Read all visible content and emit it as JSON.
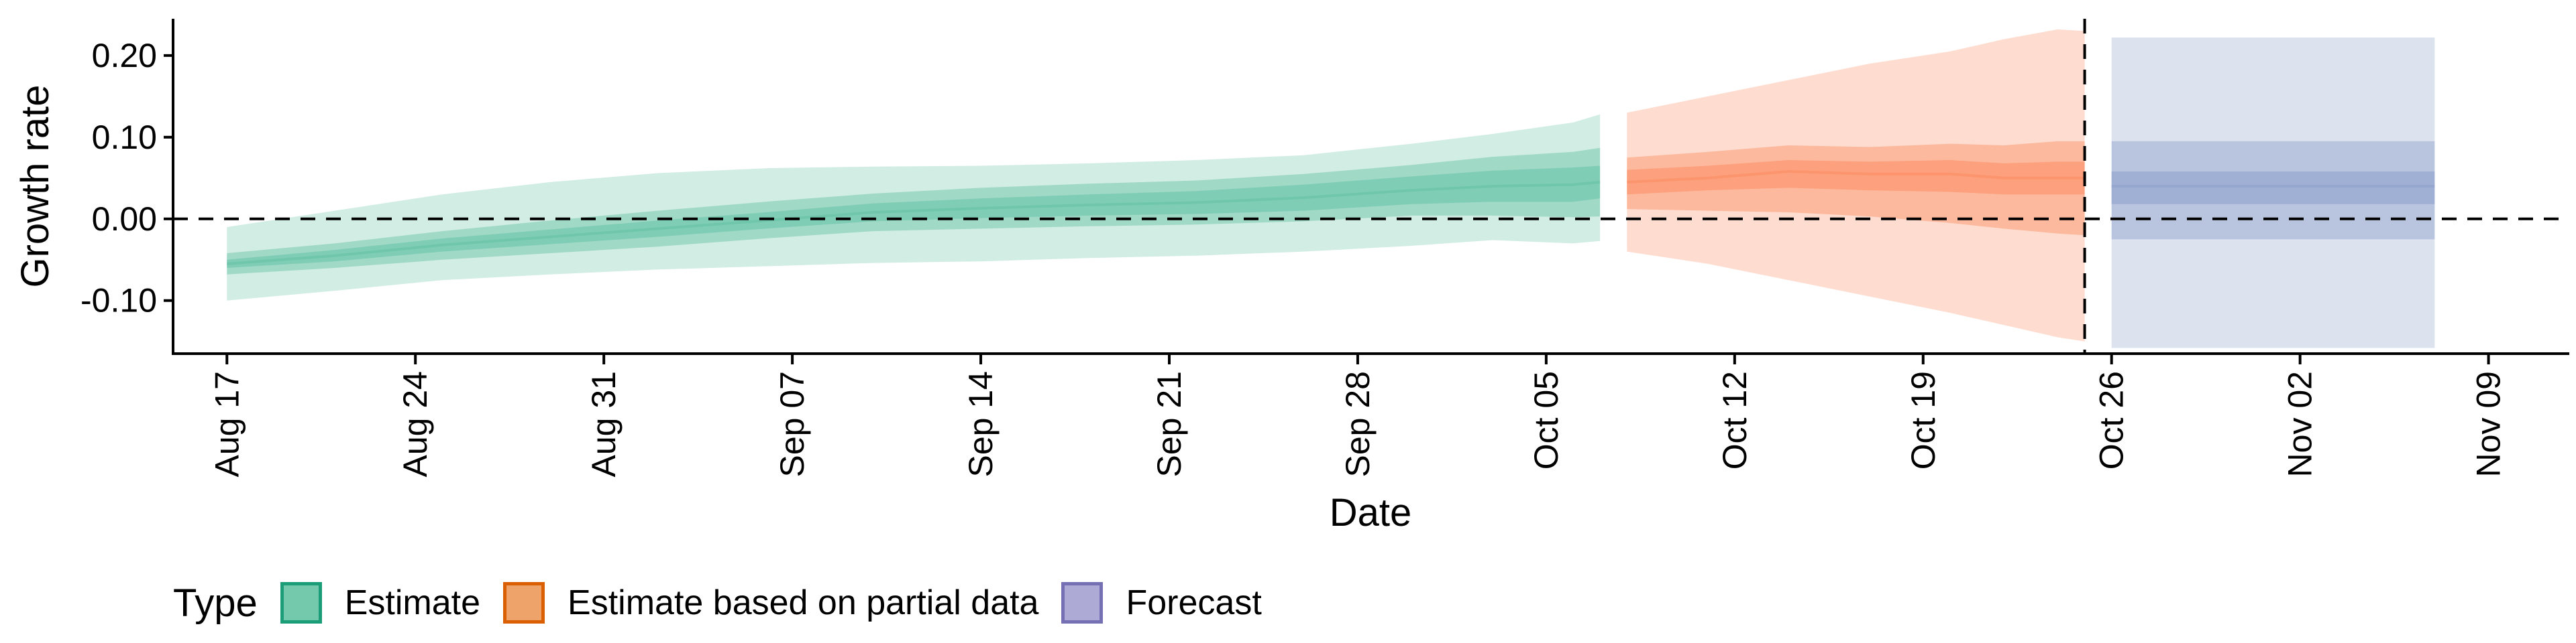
{
  "chart_data": {
    "type": "area",
    "xlabel": "Date",
    "ylabel": "Growth rate",
    "x_start": "2020-08-15",
    "x_end": "2020-11-12",
    "ylim": [
      -0.165,
      0.245
    ],
    "y_ticks": [
      -0.1,
      0.0,
      0.1,
      0.2
    ],
    "y_tick_labels": [
      "-0.10",
      "0.00",
      "0.10",
      "0.20"
    ],
    "x_ticks": [
      "2020-08-17",
      "2020-08-24",
      "2020-08-31",
      "2020-09-07",
      "2020-09-14",
      "2020-09-21",
      "2020-09-28",
      "2020-10-05",
      "2020-10-12",
      "2020-10-19",
      "2020-10-26",
      "2020-11-02",
      "2020-11-09"
    ],
    "x_tick_labels": [
      "Aug 17",
      "Aug 24",
      "Aug 31",
      "Sep 07",
      "Sep 14",
      "Sep 21",
      "Sep 28",
      "Oct 05",
      "Oct 12",
      "Oct 19",
      "Oct 26",
      "Nov 02",
      "Nov 09"
    ],
    "reference_line_y": 0.0,
    "forecast_start_line": "2020-10-25",
    "grid": false,
    "legend_position": "bottom",
    "legend_title": "Type",
    "series": [
      {
        "name": "Estimate",
        "color": "#66c2a5",
        "dates": [
          "2020-08-17",
          "2020-08-21",
          "2020-08-25",
          "2020-08-29",
          "2020-09-02",
          "2020-09-06",
          "2020-09-10",
          "2020-09-14",
          "2020-09-18",
          "2020-09-22",
          "2020-09-26",
          "2020-09-30",
          "2020-10-03",
          "2020-10-06",
          "2020-10-07"
        ],
        "median": [
          -0.055,
          -0.045,
          -0.032,
          -0.022,
          -0.012,
          -0.002,
          0.008,
          0.013,
          0.017,
          0.02,
          0.026,
          0.035,
          0.04,
          0.042,
          0.045
        ],
        "inner": [
          [
            -0.06,
            -0.05
          ],
          [
            -0.052,
            -0.038
          ],
          [
            -0.04,
            -0.024
          ],
          [
            -0.031,
            -0.013
          ],
          [
            -0.022,
            -0.002
          ],
          [
            -0.012,
            0.008
          ],
          [
            -0.003,
            0.019
          ],
          [
            0.001,
            0.025
          ],
          [
            0.004,
            0.03
          ],
          [
            0.006,
            0.034
          ],
          [
            0.01,
            0.042
          ],
          [
            0.018,
            0.052
          ],
          [
            0.021,
            0.059
          ],
          [
            0.021,
            0.063
          ],
          [
            0.025,
            0.065
          ]
        ],
        "middle": [
          [
            -0.068,
            -0.042
          ],
          [
            -0.06,
            -0.03
          ],
          [
            -0.05,
            -0.015
          ],
          [
            -0.042,
            -0.002
          ],
          [
            -0.034,
            0.01
          ],
          [
            -0.024,
            0.021
          ],
          [
            -0.015,
            0.031
          ],
          [
            -0.012,
            0.038
          ],
          [
            -0.009,
            0.043
          ],
          [
            -0.007,
            0.047
          ],
          [
            -0.003,
            0.055
          ],
          [
            0.004,
            0.066
          ],
          [
            0.004,
            0.076
          ],
          [
            0.002,
            0.082
          ],
          [
            0.003,
            0.087
          ]
        ],
        "outer": [
          [
            -0.1,
            -0.01
          ],
          [
            -0.088,
            0.01
          ],
          [
            -0.075,
            0.03
          ],
          [
            -0.068,
            0.045
          ],
          [
            -0.062,
            0.056
          ],
          [
            -0.058,
            0.062
          ],
          [
            -0.054,
            0.064
          ],
          [
            -0.052,
            0.065
          ],
          [
            -0.048,
            0.068
          ],
          [
            -0.045,
            0.072
          ],
          [
            -0.04,
            0.078
          ],
          [
            -0.033,
            0.092
          ],
          [
            -0.026,
            0.104
          ],
          [
            -0.03,
            0.118
          ],
          [
            -0.027,
            0.128
          ]
        ]
      },
      {
        "name": "Estimate based on partial data",
        "color": "#fc8d62",
        "dates": [
          "2020-10-08",
          "2020-10-11",
          "2020-10-14",
          "2020-10-17",
          "2020-10-20",
          "2020-10-22",
          "2020-10-24",
          "2020-10-25"
        ],
        "median": [
          0.045,
          0.05,
          0.058,
          0.055,
          0.055,
          0.05,
          0.05,
          0.05
        ],
        "inner": [
          [
            0.03,
            0.06
          ],
          [
            0.035,
            0.065
          ],
          [
            0.038,
            0.072
          ],
          [
            0.035,
            0.07
          ],
          [
            0.033,
            0.072
          ],
          [
            0.03,
            0.068
          ],
          [
            0.03,
            0.07
          ],
          [
            0.03,
            0.07
          ]
        ],
        "middle": [
          [
            0.012,
            0.075
          ],
          [
            0.01,
            0.082
          ],
          [
            0.008,
            0.09
          ],
          [
            0.003,
            0.088
          ],
          [
            -0.005,
            0.092
          ],
          [
            -0.012,
            0.09
          ],
          [
            -0.018,
            0.095
          ],
          [
            -0.02,
            0.095
          ]
        ],
        "outer": [
          [
            -0.04,
            0.13
          ],
          [
            -0.055,
            0.15
          ],
          [
            -0.075,
            0.17
          ],
          [
            -0.095,
            0.19
          ],
          [
            -0.115,
            0.205
          ],
          [
            -0.13,
            0.22
          ],
          [
            -0.145,
            0.232
          ],
          [
            -0.15,
            0.23
          ]
        ]
      },
      {
        "name": "Forecast",
        "color": "#8da0cb",
        "dates": [
          "2020-10-26",
          "2020-11-07"
        ],
        "median": [
          0.04,
          0.04
        ],
        "inner": [
          [
            0.018,
            0.058
          ],
          [
            0.018,
            0.058
          ]
        ],
        "middle": [
          [
            -0.025,
            0.095
          ],
          [
            -0.025,
            0.095
          ]
        ],
        "outer": [
          [
            -0.158,
            0.222
          ],
          [
            -0.158,
            0.222
          ]
        ]
      }
    ]
  }
}
